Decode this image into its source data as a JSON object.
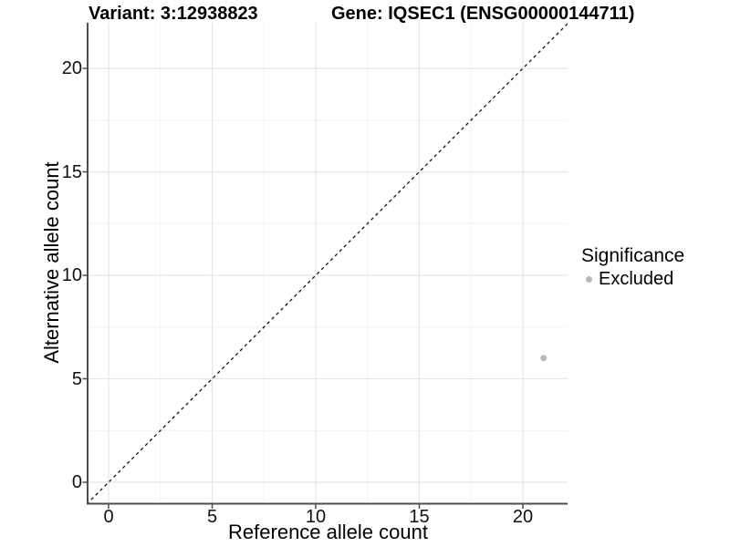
{
  "header": {
    "variant_title": "Variant: 3:12938823",
    "gene_title": "Gene: IQSEC1 (ENSG00000144711)"
  },
  "axes": {
    "x": {
      "label": "Reference allele count",
      "ticks": [
        0,
        5,
        10,
        15,
        20
      ],
      "minor_ticks": [
        2.5,
        7.5,
        12.5,
        17.5,
        22.5
      ]
    },
    "y": {
      "label": "Alternative allele count",
      "ticks": [
        0,
        5,
        10,
        15,
        20
      ],
      "minor_ticks": [
        2.5,
        7.5,
        12.5,
        17.5
      ]
    }
  },
  "legend": {
    "title": "Significance",
    "items": [
      {
        "label": "Excluded",
        "color": "#b8b8b8"
      }
    ]
  },
  "chart_data": {
    "type": "scatter",
    "title": "Variant: 3:12938823   Gene: IQSEC1 (ENSG00000144711)",
    "xlabel": "Reference allele count",
    "ylabel": "Alternative allele count",
    "xlim": [
      -1.05,
      22.2
    ],
    "ylim": [
      -1.05,
      22.2
    ],
    "x_ticks": [
      0,
      5,
      10,
      15,
      20
    ],
    "y_ticks": [
      0,
      5,
      10,
      15,
      20
    ],
    "grid": "major and minor gridlines, very light gray, on white panel",
    "legend_position": "right",
    "reference_line": {
      "kind": "identity y=x",
      "style": "dashed",
      "color": "#111111"
    },
    "series": [
      {
        "name": "Excluded",
        "color": "#b8b8b8",
        "points": [
          {
            "x": 21,
            "y": 6
          }
        ]
      }
    ]
  },
  "colors": {
    "background": "#ffffff",
    "grid_major": "#e6e6e6",
    "grid_minor": "#f2f2f2",
    "axis_line": "#4d4d4d",
    "tick_mark": "#4d4d4d",
    "diagonal": "#111111",
    "point": "#b8b8b8",
    "text": "#000000"
  }
}
